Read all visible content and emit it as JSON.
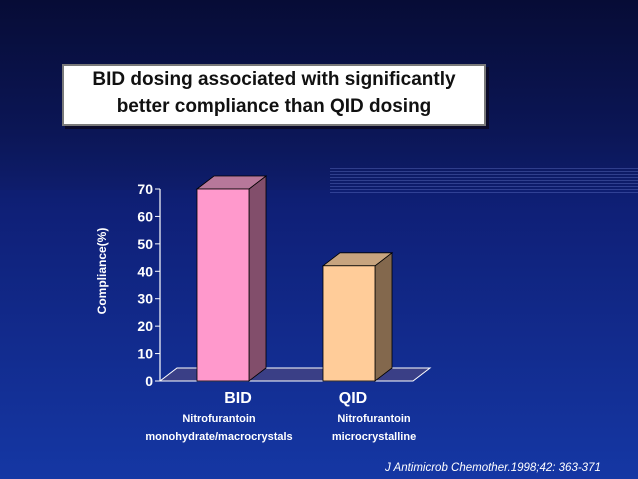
{
  "slide": {
    "title_line1": "BID dosing associated with significantly",
    "title_line2": "better compliance than QID dosing",
    "citation": "J Antimicrob Chemother.1998;42: 363-371"
  },
  "colors": {
    "bid_front": "#ff99cc",
    "bid_side": "#824e6b",
    "bid_top": "#b7789a",
    "qid_front": "#ffcc99",
    "qid_side": "#83684d",
    "qid_top": "#c7a47f"
  },
  "chart_data": {
    "type": "bar",
    "title": "BID dosing associated with significantly better compliance than QID dosing",
    "ylabel": "Compliance(%)",
    "xlabel": "",
    "categories": [
      "BID",
      "QID"
    ],
    "category_descriptions": [
      [
        "Nitrofurantoin",
        "monohydrate/macrocrystals"
      ],
      [
        "Nitrofurantoin",
        "microcrystalline"
      ]
    ],
    "values": [
      70,
      42
    ],
    "ylim": [
      0,
      70
    ],
    "yticks": [
      0,
      10,
      20,
      30,
      40,
      50,
      60,
      70
    ],
    "grid": false,
    "style": "3d"
  }
}
